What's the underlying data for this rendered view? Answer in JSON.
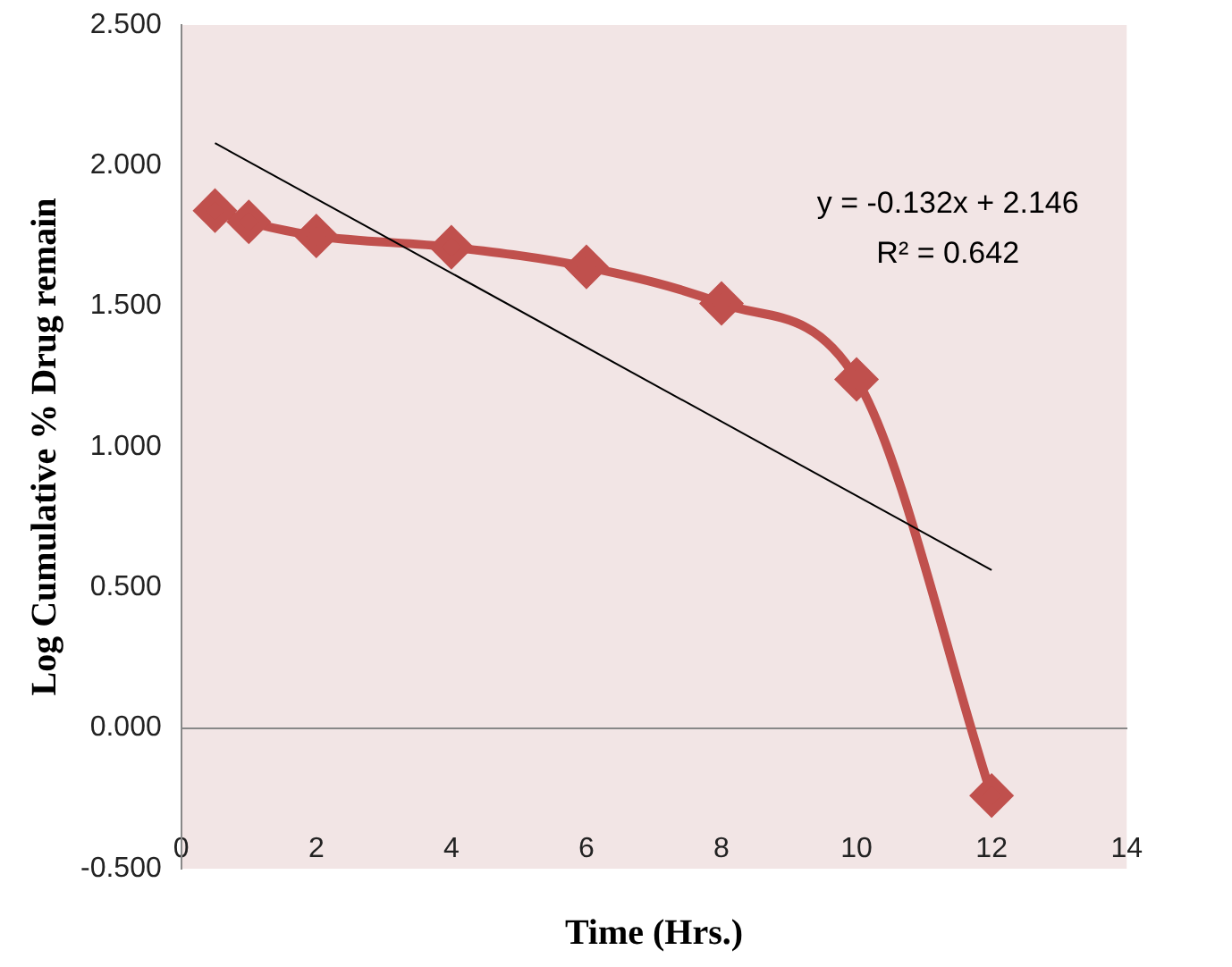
{
  "chart_data": {
    "type": "line",
    "xlabel": "Time (Hrs.)",
    "ylabel": "Log Cumulative % Drug remain",
    "x": [
      0.5,
      1,
      2,
      4,
      6,
      8,
      10,
      12
    ],
    "series": [
      {
        "color": "#c0504d",
        "values": [
          1.84,
          1.8,
          1.75,
          1.71,
          1.64,
          1.51,
          1.24,
          -0.24
        ],
        "marker": "diamond"
      },
      {
        "type": "line",
        "color": "#000000",
        "x": [
          0.5,
          12
        ],
        "values": [
          2.08,
          0.562
        ],
        "marker": "none"
      }
    ],
    "xlim": [
      0,
      14
    ],
    "xticks": [
      0,
      2,
      4,
      6,
      8,
      10,
      12,
      14
    ],
    "ylim": [
      -0.5,
      2.5
    ],
    "yticks": [
      {
        "value": -0.5,
        "label": "-0.500"
      },
      {
        "value": 0,
        "label": "0.000"
      },
      {
        "value": 0.5,
        "label": "0.500"
      },
      {
        "value": 1,
        "label": "1.000"
      },
      {
        "value": 1.5,
        "label": "1.500"
      },
      {
        "value": 2,
        "label": "2.000"
      },
      {
        "value": 2.5,
        "label": "2.500"
      }
    ],
    "annotations": [
      "y = -0.132x + 2.146",
      "R² = 0.642"
    ],
    "legend": false
  }
}
